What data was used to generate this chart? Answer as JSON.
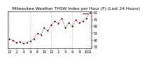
{
  "title": "Milwaukee Weather THSW Index per Hour (F) (Last 24 Hours)",
  "hours": [
    0,
    1,
    2,
    3,
    4,
    5,
    6,
    7,
    8,
    9,
    10,
    11,
    12,
    13,
    14,
    15,
    16,
    17,
    18,
    19,
    20,
    21,
    22,
    23
  ],
  "values": [
    42,
    40,
    36,
    38,
    35,
    37,
    39,
    42,
    50,
    48,
    58,
    54,
    62,
    68,
    64,
    72,
    58,
    65,
    60,
    70,
    65,
    68,
    72,
    80
  ],
  "ymin": 28,
  "ymax": 82,
  "yticks": [
    30,
    40,
    50,
    60,
    70,
    80
  ],
  "ytick_labels": [
    "30",
    "40",
    "50",
    "60",
    "70",
    "80"
  ],
  "x_tick_positions": [
    0,
    2,
    4,
    6,
    8,
    10,
    12,
    14,
    16,
    18,
    20,
    22,
    23
  ],
  "x_tick_labels": [
    "12",
    "2",
    "4",
    "6",
    "8",
    "10",
    "12",
    "2",
    "4",
    "6",
    "8",
    "10",
    "11"
  ],
  "grid_positions": [
    0,
    6,
    12,
    18,
    23
  ],
  "line_color": "#cc0000",
  "marker_color": "#000000",
  "grid_color": "#999999",
  "bg_color": "#ffffff",
  "text_color": "#000000",
  "title_fontsize": 4.2,
  "tick_fontsize": 3.5,
  "legend_line_color": "#cc0000"
}
